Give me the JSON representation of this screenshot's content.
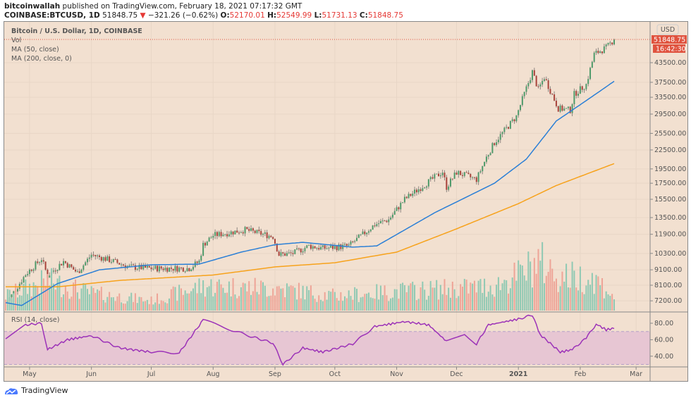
{
  "header": {
    "publisher": "bitcoinwallah",
    "published_text": "published on TradingView.com, February 18, 2021 07:17:32 GMT",
    "symbol": "COINBASE:BTCUSD, 1D",
    "last": "51848.75",
    "change": "−321.26 (−0.62%)",
    "o_label": "O:",
    "o": "52170.01",
    "h_label": "H:",
    "h": "52549.99",
    "l_label": "L:",
    "l": "51731.13",
    "c_label": "C:",
    "c": "51848.75"
  },
  "legend": {
    "title": "Bitcoin / U.S. Dollar, 1D, COINBASE",
    "vol": "Vol",
    "ma50": "MA (50, close)",
    "ma200": "MA (200, close, 0)",
    "rsi": "RSI (14, close)"
  },
  "price_axis": {
    "currency": "USD",
    "last_price": "51848.75",
    "countdown": "16:42:30",
    "ticks": [
      "43500.00",
      "37500.00",
      "33500.00",
      "29500.00",
      "25500.00",
      "22500.00",
      "19500.00",
      "17500.00",
      "15500.00",
      "13500.00",
      "11900.00",
      "10300.00",
      "9100.00",
      "8100.00",
      "7200.00"
    ]
  },
  "rsi_axis": {
    "ticks": [
      "80.00",
      "60.00",
      "40.00"
    ]
  },
  "time_axis": {
    "ticks": [
      "May",
      "Jun",
      "Jul",
      "Aug",
      "Sep",
      "Oct",
      "Nov",
      "Dec",
      "2021",
      "Feb",
      "Mar"
    ]
  },
  "footer": {
    "brand": "TradingView"
  },
  "colors": {
    "up": "#4e9a6a",
    "down": "#a8423a",
    "vol_up": "#8fc9b3",
    "vol_down": "#eea497",
    "ma50": "#2a7fd6",
    "ma200": "#f7a21b",
    "rsi": "#9c32b8",
    "rsi_band": "#e7c6d3",
    "bg": "#f2e0d0",
    "last_price": "#e0533f"
  },
  "chart_data": {
    "type": "candlestick",
    "scale": "log",
    "grid": true,
    "x_range": [
      "2020-04-19",
      "2021-02-18"
    ],
    "close": [
      [
        "2020-04-19",
        7100
      ],
      [
        "2020-04-22",
        7500
      ],
      [
        "2020-04-29",
        8800
      ],
      [
        "2020-05-07",
        9900
      ],
      [
        "2020-05-10",
        8700
      ],
      [
        "2020-05-18",
        9700
      ],
      [
        "2020-05-25",
        8900
      ],
      [
        "2020-06-01",
        10200
      ],
      [
        "2020-06-10",
        9800
      ],
      [
        "2020-06-20",
        9300
      ],
      [
        "2020-07-01",
        9200
      ],
      [
        "2020-07-20",
        9200
      ],
      [
        "2020-07-25",
        9700
      ],
      [
        "2020-07-27",
        11000
      ],
      [
        "2020-08-01",
        11800
      ],
      [
        "2020-08-17",
        12300
      ],
      [
        "2020-08-31",
        11700
      ],
      [
        "2020-09-03",
        10200
      ],
      [
        "2020-09-10",
        10300
      ],
      [
        "2020-09-18",
        10900
      ],
      [
        "2020-09-25",
        10700
      ],
      [
        "2020-10-08",
        10900
      ],
      [
        "2020-10-21",
        12800
      ],
      [
        "2020-10-28",
        13300
      ],
      [
        "2020-11-05",
        15500
      ],
      [
        "2020-11-17",
        17700
      ],
      [
        "2020-11-24",
        19100
      ],
      [
        "2020-11-26",
        17000
      ],
      [
        "2020-12-01",
        19000
      ],
      [
        "2020-12-11",
        18000
      ],
      [
        "2020-12-16",
        21300
      ],
      [
        "2020-12-20",
        23800
      ],
      [
        "2020-12-26",
        26500
      ],
      [
        "2020-12-31",
        29000
      ],
      [
        "2021-01-03",
        33000
      ],
      [
        "2021-01-08",
        40600
      ],
      [
        "2021-01-11",
        35500
      ],
      [
        "2021-01-14",
        39000
      ],
      [
        "2021-01-21",
        30800
      ],
      [
        "2021-01-27",
        30400
      ],
      [
        "2021-01-29",
        34300
      ],
      [
        "2021-02-04",
        36900
      ],
      [
        "2021-02-08",
        46400
      ],
      [
        "2021-02-14",
        48700
      ],
      [
        "2021-02-18",
        51848.75
      ]
    ],
    "ma50": [
      [
        "2020-04-19",
        7100
      ],
      [
        "2020-04-27",
        6950
      ],
      [
        "2020-05-15",
        8200
      ],
      [
        "2020-06-05",
        9100
      ],
      [
        "2020-07-01",
        9450
      ],
      [
        "2020-07-25",
        9500
      ],
      [
        "2020-08-15",
        10400
      ],
      [
        "2020-09-01",
        11000
      ],
      [
        "2020-09-15",
        11200
      ],
      [
        "2020-10-10",
        10800
      ],
      [
        "2020-10-22",
        10900
      ],
      [
        "2020-11-20",
        14000
      ],
      [
        "2020-12-20",
        17500
      ],
      [
        "2021-01-05",
        21000
      ],
      [
        "2021-01-20",
        28000
      ],
      [
        "2021-02-05",
        33000
      ],
      [
        "2021-02-18",
        37800
      ]
    ],
    "ma200": [
      [
        "2020-04-19",
        8000
      ],
      [
        "2020-05-15",
        8000
      ],
      [
        "2020-06-15",
        8400
      ],
      [
        "2020-08-01",
        8750
      ],
      [
        "2020-09-01",
        9300
      ],
      [
        "2020-10-01",
        9600
      ],
      [
        "2020-11-01",
        10400
      ],
      [
        "2020-12-01",
        12400
      ],
      [
        "2021-01-01",
        15000
      ],
      [
        "2021-01-20",
        17200
      ],
      [
        "2021-02-18",
        20300
      ]
    ],
    "rsi": [
      [
        "2020-04-19",
        60
      ],
      [
        "2020-04-29",
        78
      ],
      [
        "2020-05-07",
        80
      ],
      [
        "2020-05-10",
        48
      ],
      [
        "2020-05-20",
        60
      ],
      [
        "2020-06-01",
        65
      ],
      [
        "2020-06-15",
        50
      ],
      [
        "2020-07-01",
        45
      ],
      [
        "2020-07-15",
        44
      ],
      [
        "2020-07-27",
        84
      ],
      [
        "2020-08-10",
        72
      ],
      [
        "2020-08-20",
        64
      ],
      [
        "2020-08-31",
        56
      ],
      [
        "2020-09-05",
        30
      ],
      [
        "2020-09-15",
        50
      ],
      [
        "2020-09-25",
        45
      ],
      [
        "2020-10-10",
        55
      ],
      [
        "2020-10-21",
        76
      ],
      [
        "2020-11-05",
        82
      ],
      [
        "2020-11-17",
        78
      ],
      [
        "2020-11-26",
        58
      ],
      [
        "2020-12-05",
        66
      ],
      [
        "2020-12-11",
        55
      ],
      [
        "2020-12-17",
        78
      ],
      [
        "2021-01-01",
        85
      ],
      [
        "2021-01-08",
        90
      ],
      [
        "2021-01-12",
        66
      ],
      [
        "2021-01-22",
        45
      ],
      [
        "2021-01-28",
        48
      ],
      [
        "2021-02-04",
        62
      ],
      [
        "2021-02-09",
        79
      ],
      [
        "2021-02-14",
        72
      ],
      [
        "2021-02-18",
        74
      ]
    ],
    "rsi_bands": [
      30,
      70
    ],
    "volume_relative": [
      [
        "2020-04-19",
        0.3
      ],
      [
        "2020-05-10",
        0.6
      ],
      [
        "2020-06-01",
        0.35
      ],
      [
        "2020-07-01",
        0.2
      ],
      [
        "2020-07-27",
        0.5
      ],
      [
        "2020-09-03",
        0.45
      ],
      [
        "2020-10-01",
        0.3
      ],
      [
        "2020-11-05",
        0.4
      ],
      [
        "2020-12-01",
        0.45
      ],
      [
        "2020-12-20",
        0.5
      ],
      [
        "2021-01-03",
        0.75
      ],
      [
        "2021-01-11",
        1.0
      ],
      [
        "2021-01-21",
        0.7
      ],
      [
        "2021-02-08",
        0.65
      ],
      [
        "2021-02-18",
        0.3
      ]
    ]
  }
}
